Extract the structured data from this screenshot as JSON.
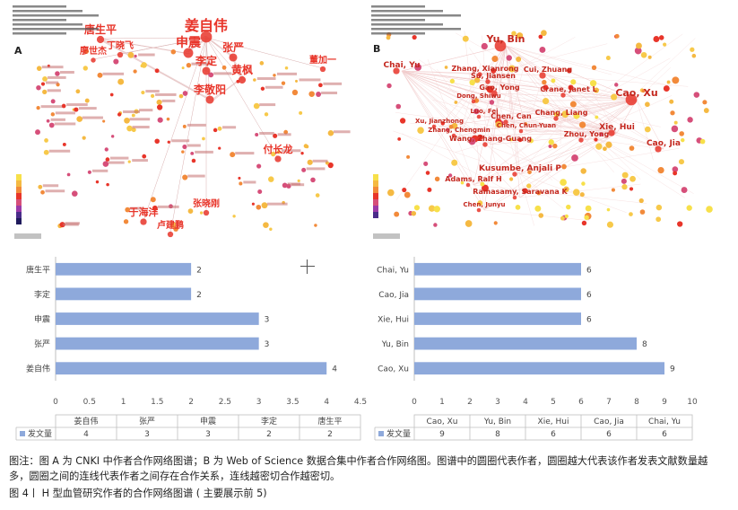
{
  "figures": {
    "panel_a": {
      "letter": "A",
      "authors_large": [
        {
          "name": "姜自伟",
          "color": "#e8352a"
        },
        {
          "name": "申震",
          "color": "#e8352a"
        },
        {
          "name": "张严",
          "color": "#e8352a"
        },
        {
          "name": "李定",
          "color": "#e8352a"
        },
        {
          "name": "唐生平",
          "color": "#e8352a"
        },
        {
          "name": "黄枫",
          "color": "#e8352a"
        },
        {
          "name": "李敬阳",
          "color": "#e8352a"
        },
        {
          "name": "丁晓飞",
          "color": "#e8352a"
        },
        {
          "name": "付长龙",
          "color": "#e8352a"
        },
        {
          "name": "于海洋",
          "color": "#e8352a"
        },
        {
          "name": "卢建鹏",
          "color": "#e8352a"
        },
        {
          "name": "张晓刚",
          "color": "#e8352a"
        },
        {
          "name": "董加一",
          "color": "#e8352a"
        },
        {
          "name": "廖世杰",
          "color": "#e8352a"
        }
      ]
    },
    "panel_b": {
      "letter": "B",
      "authors_large": [
        {
          "name": "Yu, Bin"
        },
        {
          "name": "Chai, Yu"
        },
        {
          "name": "Zhang, Xianrong"
        },
        {
          "name": "Su, Jiansen"
        },
        {
          "name": "Gao, Yong"
        },
        {
          "name": "Cui, Zhuang"
        },
        {
          "name": "Crane, Janet L"
        },
        {
          "name": "Cao, Xu"
        },
        {
          "name": "Dong, Shiwu"
        },
        {
          "name": "Luo, Fei"
        },
        {
          "name": "Chen, Can"
        },
        {
          "name": "Chang, Liang"
        },
        {
          "name": "Xu, Jianzhong"
        },
        {
          "name": "Zhang, Chengmin"
        },
        {
          "name": "Chen, Chun-Yuan"
        },
        {
          "name": "Xie, Hui"
        },
        {
          "name": "Wang, Zhang-Guang"
        },
        {
          "name": "Zhou, Yong"
        },
        {
          "name": "Cao, Jia"
        },
        {
          "name": "Kusumbe, Anjali P"
        },
        {
          "name": "Adams, Ralf H"
        },
        {
          "name": "Ramasamy, Saravana K"
        },
        {
          "name": "Chen, Junyu"
        }
      ]
    }
  },
  "chart_data": [
    {
      "type": "bar",
      "orientation": "horizontal",
      "categories": [
        "姜自伟",
        "张严",
        "申震",
        "李定",
        "唐生平"
      ],
      "series": [
        {
          "name": "发文量",
          "values": [
            4,
            3,
            3,
            2,
            2
          ]
        }
      ],
      "xlim": [
        0,
        4.5
      ],
      "xticks": [
        0,
        0.5,
        1,
        1.5,
        2,
        2.5,
        3,
        3.5,
        4,
        4.5
      ],
      "bar_color": "#8ea9db",
      "legend": "bottom-table"
    },
    {
      "type": "bar",
      "orientation": "horizontal",
      "categories": [
        "Cao, Xu",
        "Yu, Bin",
        "Xie, Hui",
        "Cao, Jia",
        "Chai, Yu"
      ],
      "series": [
        {
          "name": "发文量",
          "values": [
            9,
            8,
            6,
            6,
            6
          ]
        }
      ],
      "xlim": [
        0,
        10
      ],
      "xticks": [
        0,
        1,
        2,
        3,
        4,
        5,
        6,
        7,
        8,
        9,
        10
      ],
      "bar_color": "#8ea9db",
      "legend": "bottom-table"
    }
  ],
  "caption": "图注：图 A 为 CNKI 中作者合作网络图谱；B 为 Web of Science 数据合集中作者合作网络图。图谱中的圆圈代表作者，圆圈越大代表该作者发表文献数量越多，圆圈之间的连线代表作者之间存在合作关系，连线越密切合作越密切。",
  "figure_title": "图 4丨 H 型血管研究作者的合作网络图谱 ( 主要展示前 5)"
}
